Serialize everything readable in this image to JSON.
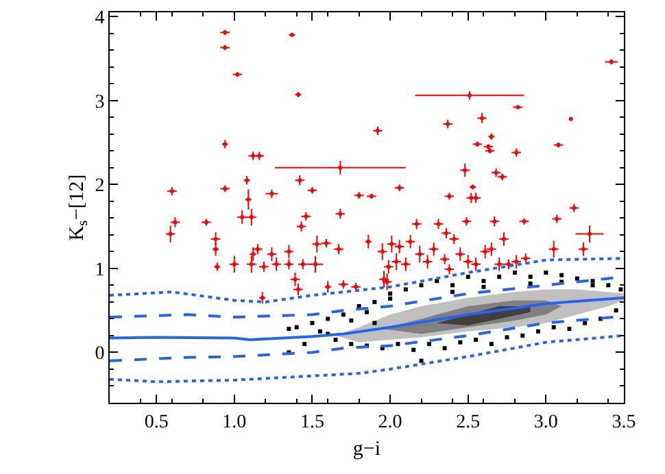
{
  "chart_data": {
    "type": "scatter",
    "xlabel": "g−i",
    "ylabel": "K$_{s}$−[12]",
    "xlim": [
      0.2,
      3.5
    ],
    "ylim": [
      -0.6,
      4.05
    ],
    "xticks": [
      {
        "value": 0.5,
        "label": "0.5"
      },
      {
        "value": 1.0,
        "label": "1.0"
      },
      {
        "value": 1.5,
        "label": "1.5"
      },
      {
        "value": 2.0,
        "label": "2.0"
      },
      {
        "value": 2.5,
        "label": "2.5"
      },
      {
        "value": 3.0,
        "label": "3.0"
      },
      {
        "value": 3.5,
        "label": "3.5"
      }
    ],
    "yticks": [
      0,
      1,
      2,
      3,
      4
    ],
    "series": [
      {
        "type": "area",
        "color": "#c0c0c0",
        "x": [
          1.65,
          1.8,
          2.0,
          2.2,
          2.5,
          2.8,
          3.0,
          3.2,
          3.4,
          3.5
        ],
        "values": [
          null,
          null,
          null,
          null,
          null,
          null,
          null,
          null,
          null,
          null
        ],
        "upper": [
          0.2,
          0.3,
          0.45,
          0.55,
          0.65,
          0.72,
          0.75,
          0.75,
          0.72,
          0.7
        ],
        "lower": [
          0.2,
          0.12,
          0.15,
          0.18,
          0.25,
          0.3,
          0.35,
          0.45,
          0.55,
          0.62
        ]
      },
      {
        "type": "area",
        "color": "#808080",
        "x": [
          1.95,
          2.2,
          2.5,
          2.8,
          3.0,
          3.1
        ],
        "values": [
          null,
          null,
          null,
          null,
          null,
          null
        ],
        "upper": [
          0.28,
          0.4,
          0.55,
          0.62,
          0.62,
          0.55
        ],
        "lower": [
          0.28,
          0.22,
          0.3,
          0.38,
          0.45,
          0.55
        ]
      },
      {
        "type": "area",
        "color": "#404040",
        "x": [
          2.3,
          2.5,
          2.7,
          2.9
        ],
        "values": [
          null,
          null,
          null,
          null
        ],
        "upper": [
          0.35,
          0.45,
          0.55,
          0.55
        ],
        "lower": [
          0.35,
          0.32,
          0.4,
          0.48
        ]
      },
      {
        "marker": "square",
        "color": "#000000",
        "x": [
          1.35,
          1.4,
          1.45,
          1.5,
          1.55,
          1.6,
          1.65,
          1.7,
          1.75,
          1.8,
          1.85,
          1.9,
          1.95,
          2.0,
          2.05,
          2.1,
          2.15,
          2.2,
          2.25,
          2.3,
          2.35,
          2.4,
          2.45,
          2.5,
          2.55,
          2.6,
          2.65,
          2.7,
          2.75,
          2.8,
          2.85,
          2.9,
          2.95,
          3.0,
          3.05,
          3.1,
          3.15,
          3.2,
          3.25,
          3.3,
          3.35,
          3.4,
          3.45,
          3.48,
          1.35,
          1.85,
          2.2,
          2.0,
          1.9,
          1.6,
          1.75,
          2.4,
          2.6,
          2.9,
          3.1,
          3.3
        ],
        "values": [
          0.28,
          0.3,
          0.1,
          0.35,
          0.25,
          0.4,
          0.15,
          0.45,
          0.1,
          0.55,
          0.08,
          0.6,
          0.05,
          0.7,
          0.1,
          0.75,
          0.03,
          0.8,
          0.1,
          0.85,
          0.05,
          0.8,
          0.12,
          0.9,
          0.15,
          0.85,
          0.1,
          0.9,
          0.18,
          0.95,
          0.2,
          0.9,
          0.25,
          0.95,
          0.3,
          0.92,
          0.28,
          0.88,
          0.35,
          0.85,
          0.4,
          0.8,
          0.5,
          0.75,
          0.0,
          0.48,
          -0.1,
          0.64,
          0.35,
          0.22,
          0.38,
          0.72,
          0.78,
          0.82,
          0.84,
          0.8
        ]
      },
      {
        "marker": "circle",
        "color": "#ff0000",
        "x": [
          0.94,
          0.94,
          1.02,
          1.37,
          1.41,
          2.51,
          2.82,
          3.42,
          3.16,
          2.37,
          2.59,
          1.92,
          0.94,
          2.56,
          2.63,
          2.64,
          2.65,
          2.81,
          3.08,
          1.12,
          1.16,
          1.68,
          2.48,
          2.68,
          2.72,
          1.08,
          1.42,
          2.53,
          2.06,
          0.94,
          0.6,
          1.24,
          1.5,
          1.8,
          1.88,
          2.38,
          2.52,
          2.55,
          1.09,
          0.62,
          0.59,
          0.82,
          0.88,
          0.88,
          0.89,
          1.05,
          1.11,
          1.0,
          1.11,
          1.12,
          1.15,
          1.19,
          1.18,
          1.24,
          1.27,
          1.35,
          1.35,
          1.39,
          1.41,
          1.44,
          1.43,
          1.46,
          1.52,
          1.53,
          1.59,
          1.6,
          1.67,
          1.68,
          1.7,
          1.78,
          1.86,
          1.95,
          1.96,
          1.98,
          1.99,
          2.01,
          2.04,
          2.06,
          2.1,
          2.13,
          2.17,
          2.19,
          2.24,
          2.28,
          2.31,
          2.35,
          2.36,
          2.41,
          2.45,
          2.49,
          2.55,
          2.61,
          2.65,
          2.67,
          2.7,
          2.73,
          2.76,
          2.81,
          2.87,
          2.86,
          3.05,
          3.07,
          3.18,
          3.24,
          3.28,
          2.5,
          2.38
        ],
        "values": [
          3.81,
          3.63,
          3.31,
          3.78,
          3.07,
          3.06,
          2.92,
          3.46,
          2.78,
          2.72,
          2.79,
          2.64,
          2.48,
          2.48,
          2.45,
          2.4,
          2.57,
          2.38,
          2.47,
          2.34,
          2.34,
          2.2,
          2.17,
          2.14,
          2.09,
          2.05,
          2.05,
          1.97,
          1.96,
          1.95,
          1.92,
          1.89,
          1.93,
          1.87,
          1.86,
          1.86,
          1.84,
          1.84,
          1.82,
          1.55,
          1.41,
          1.55,
          1.35,
          1.23,
          1.02,
          1.61,
          1.61,
          1.05,
          1.05,
          1.17,
          1.23,
          1.02,
          0.65,
          1.17,
          1.05,
          1.05,
          1.2,
          0.87,
          0.75,
          1.05,
          1.5,
          1.62,
          1.05,
          1.29,
          1.3,
          0.78,
          1.23,
          1.65,
          0.81,
          0.78,
          1.32,
          1.2,
          0.87,
          0.84,
          1.02,
          1.29,
          1.08,
          1.26,
          1.05,
          1.32,
          1.53,
          1.17,
          1.08,
          1.23,
          1.53,
          1.11,
          1.42,
          1.35,
          1.17,
          1.56,
          1.05,
          1.2,
          1.23,
          1.56,
          1.05,
          1.35,
          1.05,
          1.08,
          1.12,
          1.56,
          1.23,
          1.59,
          1.72,
          1.23,
          1.41,
          1.08,
          0.99
        ],
        "errors": [
          0.03,
          0.03,
          0.03,
          0.02,
          0.03,
          0.05,
          0.02,
          0.03,
          0.02,
          0.05,
          0.06,
          0.05,
          0.05,
          0.03,
          0.03,
          0.03,
          0.04,
          0.05,
          0.03,
          0.05,
          0.05,
          0.08,
          0.08,
          0.05,
          0.04,
          0.05,
          0.06,
          0.03,
          0.04,
          0.04,
          0.05,
          0.05,
          0.04,
          0.04,
          0.03,
          0.04,
          0.06,
          0.06,
          0.12,
          0.06,
          0.1,
          0.04,
          0.08,
          0.08,
          0.05,
          0.08,
          0.1,
          0.1,
          0.1,
          0.08,
          0.06,
          0.06,
          0.07,
          0.08,
          0.08,
          0.06,
          0.08,
          0.08,
          0.07,
          0.06,
          0.06,
          0.05,
          0.1,
          0.1,
          0.05,
          0.07,
          0.06,
          0.06,
          0.05,
          0.05,
          0.08,
          0.1,
          0.1,
          0.1,
          0.08,
          0.1,
          0.1,
          0.08,
          0.08,
          0.08,
          0.06,
          0.1,
          0.08,
          0.08,
          0.06,
          0.06,
          0.06,
          0.06,
          0.08,
          0.05,
          0.08,
          0.08,
          0.08,
          0.06,
          0.08,
          0.08,
          0.06,
          0.08,
          0.06,
          0.04,
          0.1,
          0.05,
          0.05,
          0.08,
          0.1,
          0.08,
          0.06
        ],
        "xerrors": [
          0.03,
          0.03,
          0.03,
          0.02,
          0.02,
          0.35,
          0.03,
          0.04,
          0.01,
          0.03,
          0.03,
          0.03,
          0.02,
          0.03,
          0.03,
          0.03,
          0.02,
          0.03,
          0.03,
          0.03,
          0.03,
          0.42,
          0.03,
          0.03,
          0.03,
          0.02,
          0.03,
          0.02,
          0.03,
          0.03,
          0.03,
          0.04,
          0.03,
          0.03,
          0.03,
          0.03,
          0.03,
          0.03,
          0.02,
          0.03,
          0.03,
          0.03,
          0.03,
          0.02,
          0.02,
          0.03,
          0.03,
          0.03,
          0.03,
          0.02,
          0.03,
          0.03,
          0.02,
          0.03,
          0.03,
          0.03,
          0.03,
          0.03,
          0.03,
          0.03,
          0.03,
          0.03,
          0.05,
          0.03,
          0.03,
          0.02,
          0.03,
          0.03,
          0.03,
          0.03,
          0.02,
          0.03,
          0.03,
          0.03,
          0.03,
          0.03,
          0.03,
          0.03,
          0.03,
          0.03,
          0.03,
          0.03,
          0.03,
          0.03,
          0.03,
          0.03,
          0.03,
          0.03,
          0.03,
          0.03,
          0.03,
          0.03,
          0.03,
          0.03,
          0.03,
          0.03,
          0.03,
          0.03,
          0.03,
          0.03,
          0.03,
          0.03,
          0.03,
          0.03,
          0.09,
          0.03,
          0.03
        ]
      },
      {
        "type": "line",
        "color": "#2266ee",
        "line_style": "solid",
        "x": [
          0.2,
          0.5,
          1.0,
          1.1,
          1.5,
          1.7,
          2.0,
          2.5,
          3.0,
          3.5
        ],
        "values": [
          0.17,
          0.18,
          0.17,
          0.15,
          0.19,
          0.22,
          0.3,
          0.45,
          0.58,
          0.65
        ]
      },
      {
        "type": "line",
        "color": "#2266ee",
        "line_style": "dashed",
        "x": [
          0.2,
          0.7,
          1.0,
          1.5,
          1.7,
          2.0,
          2.5,
          3.0,
          3.5
        ],
        "values": [
          0.42,
          0.45,
          0.42,
          0.45,
          0.5,
          0.55,
          0.7,
          0.8,
          0.9
        ]
      },
      {
        "type": "line",
        "color": "#2266ee",
        "line_style": "dashed",
        "x": [
          0.2,
          0.7,
          1.0,
          1.5,
          1.7,
          2.0,
          2.5,
          3.0,
          3.5
        ],
        "values": [
          -0.1,
          -0.06,
          -0.05,
          0.0,
          0.05,
          0.08,
          0.2,
          0.35,
          0.43
        ]
      },
      {
        "type": "line",
        "color": "#2266ee",
        "line_style": "dotted",
        "x": [
          0.2,
          0.6,
          1.0,
          1.2,
          1.5,
          2.0,
          2.5,
          3.0,
          3.5
        ],
        "values": [
          0.68,
          0.72,
          0.62,
          0.6,
          0.68,
          0.78,
          0.95,
          1.1,
          1.12
        ]
      },
      {
        "type": "line",
        "color": "#2266ee",
        "line_style": "dotted",
        "x": [
          0.2,
          0.5,
          1.0,
          1.5,
          1.8,
          2.0,
          2.5,
          3.0,
          3.5
        ],
        "values": [
          -0.32,
          -0.35,
          -0.33,
          -0.28,
          -0.25,
          -0.2,
          -0.05,
          0.12,
          0.2
        ]
      }
    ]
  }
}
